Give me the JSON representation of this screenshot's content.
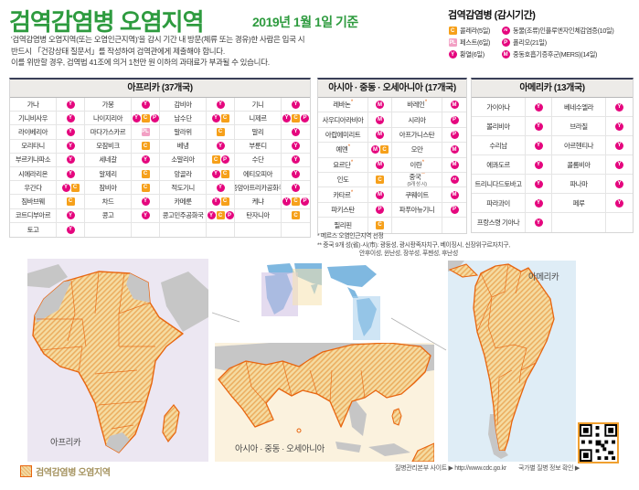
{
  "header": {
    "title": "검역감염병 오염지역",
    "date": "2019년 1월 1일 기준",
    "subtitle_lines": [
      "'검역감염병 오염지역(또는 오염인근지역)'을 감시 기간 내  방문(체류 또는 경유)한 사람은 입국 시",
      "반드시 「건강상태 질문서」를 작성하여 검역관에게 제출해야 합니다.",
      "이를 위반할 경우, 검역법 41조에 의거 1천만 원 이하의 과태료가 부과될 수 있습니다."
    ]
  },
  "legend": {
    "title": "검역감염병 (감시기간)",
    "items": [
      {
        "badge": "C",
        "label": "콜레라(5일)"
      },
      {
        "badge": "AI",
        "label": "동물(조류)인플루엔자인체감염증(10일)"
      },
      {
        "badge": "PL",
        "label": "페스트(6일)"
      },
      {
        "badge": "P",
        "label": "폴리오(21일)"
      },
      {
        "badge": "Y",
        "label": "황열(6일)"
      },
      {
        "badge": "M",
        "label": "중동호흡기증후군(MERS)(14일)"
      }
    ]
  },
  "badge_styles": {
    "Y": {
      "shape": "circle",
      "color": "#e5067e"
    },
    "M": {
      "shape": "circle",
      "color": "#e5067e"
    },
    "P": {
      "shape": "circle",
      "color": "#e5067e"
    },
    "AI": {
      "shape": "circle",
      "color": "#e5067e"
    },
    "C": {
      "shape": "square",
      "color": "#f6a01a"
    },
    "PL": {
      "shape": "square",
      "color": "#f2a0c4"
    }
  },
  "tables": {
    "africa": {
      "title": "아프리카 (37개국)",
      "rows": [
        [
          {
            "n": "가나",
            "b": [
              "Y"
            ]
          },
          {
            "n": "가봉",
            "b": [
              "Y"
            ]
          },
          {
            "n": "감비아",
            "b": [
              "Y"
            ]
          },
          {
            "n": "기니",
            "b": [
              "Y"
            ]
          }
        ],
        [
          {
            "n": "기니비사우",
            "b": [
              "Y"
            ]
          },
          {
            "n": "나이지리아",
            "b": [
              "Y",
              "C",
              "P"
            ]
          },
          {
            "n": "남수단",
            "b": [
              "Y",
              "C"
            ]
          },
          {
            "n": "니제르",
            "b": [
              "Y",
              "C",
              "P"
            ]
          }
        ],
        [
          {
            "n": "라이베리아",
            "b": [
              "Y"
            ]
          },
          {
            "n": "마다가스카르",
            "b": [
              "PL"
            ]
          },
          {
            "n": "말라위",
            "b": [
              "C"
            ]
          },
          {
            "n": "말리",
            "b": [
              "Y"
            ]
          }
        ],
        [
          {
            "n": "모리타니",
            "b": [
              "Y"
            ]
          },
          {
            "n": "모잠비크",
            "b": [
              "C"
            ]
          },
          {
            "n": "베냉",
            "b": [
              "Y"
            ]
          },
          {
            "n": "부룬디",
            "b": [
              "Y"
            ]
          }
        ],
        [
          {
            "n": "부르키나파소",
            "b": [
              "Y"
            ]
          },
          {
            "n": "세네갈",
            "b": [
              "Y"
            ]
          },
          {
            "n": "소말리아",
            "b": [
              "C",
              "P"
            ]
          },
          {
            "n": "수단",
            "b": [
              "Y"
            ]
          }
        ],
        [
          {
            "n": "시에라리온",
            "b": [
              "Y"
            ]
          },
          {
            "n": "알제리",
            "b": [
              "C"
            ]
          },
          {
            "n": "앙골라",
            "b": [
              "Y",
              "C"
            ]
          },
          {
            "n": "에티오피아",
            "b": [
              "Y"
            ]
          }
        ],
        [
          {
            "n": "우간다",
            "b": [
              "Y",
              "C"
            ]
          },
          {
            "n": "잠비아",
            "b": [
              "C"
            ]
          },
          {
            "n": "적도기니",
            "b": [
              "Y"
            ]
          },
          {
            "n": "중앙아프리카공화국",
            "b": [
              "Y"
            ]
          }
        ],
        [
          {
            "n": "짐바브웨",
            "b": [
              "C"
            ]
          },
          {
            "n": "차드",
            "b": [
              "Y"
            ]
          },
          {
            "n": "카메룬",
            "b": [
              "Y",
              "C"
            ]
          },
          {
            "n": "케냐",
            "b": [
              "Y",
              "C",
              "P"
            ]
          }
        ],
        [
          {
            "n": "코트디부아르",
            "b": [
              "Y"
            ]
          },
          {
            "n": "콩고",
            "b": [
              "Y"
            ]
          },
          {
            "n": "콩고민주공화국",
            "b": [
              "Y",
              "C",
              "P"
            ]
          },
          {
            "n": "탄자니아",
            "b": [
              "C"
            ]
          }
        ],
        [
          {
            "n": "토고",
            "b": [
              "Y"
            ]
          },
          {
            "n": "",
            "b": []
          },
          {
            "n": "",
            "b": []
          },
          {
            "n": "",
            "b": []
          }
        ]
      ]
    },
    "asia": {
      "title": "아시아 · 중동 · 오세아니아 (17개국)",
      "rows": [
        [
          {
            "n": "레바논*",
            "b": [
              "M"
            ]
          },
          {
            "n": "바레인*",
            "b": [
              "M"
            ]
          }
        ],
        [
          {
            "n": "사우디아라비아",
            "b": [
              "M"
            ]
          },
          {
            "n": "시리아",
            "b": [
              "P"
            ]
          }
        ],
        [
          {
            "n": "아랍에미리트",
            "b": [
              "M"
            ]
          },
          {
            "n": "아프가니스탄",
            "b": [
              "P"
            ]
          }
        ],
        [
          {
            "n": "예멘*",
            "b": [
              "M",
              "C"
            ]
          },
          {
            "n": "오만",
            "b": [
              "M"
            ]
          }
        ],
        [
          {
            "n": "요르단*",
            "b": [
              "M"
            ]
          },
          {
            "n": "이란*",
            "b": [
              "M"
            ]
          }
        ],
        [
          {
            "n": "인도",
            "b": [
              "C"
            ]
          },
          {
            "n": "중국**",
            "sub": "(9개 성·시)",
            "b": [
              "AI"
            ]
          }
        ],
        [
          {
            "n": "카타르*",
            "b": [
              "M"
            ]
          },
          {
            "n": "쿠웨이트",
            "b": [
              "M"
            ]
          }
        ],
        [
          {
            "n": "파키스탄",
            "b": [
              "P"
            ]
          },
          {
            "n": "파푸아뉴기니",
            "b": [
              "P"
            ]
          }
        ],
        [
          {
            "n": "필리핀",
            "b": [
              "C"
            ]
          },
          {
            "n": "",
            "b": []
          }
        ]
      ]
    },
    "america": {
      "title": "아메리카 (13개국)",
      "rows": [
        [
          {
            "n": "가이아나",
            "b": [
              "Y"
            ]
          },
          {
            "n": "베네수엘라",
            "b": [
              "Y"
            ]
          }
        ],
        [
          {
            "n": "볼리비아",
            "b": [
              "Y"
            ]
          },
          {
            "n": "브라질",
            "b": [
              "Y"
            ]
          }
        ],
        [
          {
            "n": "수리남",
            "b": [
              "Y"
            ]
          },
          {
            "n": "아르헨티나",
            "b": [
              "Y"
            ]
          }
        ],
        [
          {
            "n": "에콰도르",
            "b": [
              "Y"
            ]
          },
          {
            "n": "콜롬비아",
            "b": [
              "Y"
            ]
          }
        ],
        [
          {
            "n": "트리니다드토바고",
            "b": [
              "Y"
            ]
          },
          {
            "n": "파나마",
            "b": [
              "Y"
            ]
          }
        ],
        [
          {
            "n": "파라과이",
            "b": [
              "Y"
            ]
          },
          {
            "n": "페루",
            "b": [
              "Y"
            ]
          }
        ],
        [
          {
            "n": "프랑스령 기아나",
            "b": [
              "Y"
            ]
          },
          {
            "n": "",
            "b": []
          }
        ]
      ]
    }
  },
  "footnotes": [
    "* 메르스 오염인근지역 선정",
    "** 중국 9개 성(省)·시(市): 광둥성, 광시좡족자치구, 베이징시, 신장위구르자치구,",
    "안후이성, 윈난성, 장쑤성, 푸젠성, 후난성"
  ],
  "maps": {
    "africa_label": "아프리카",
    "asia_label": "아시아 · 중동 · 오세아니아",
    "america_label": "아메리카"
  },
  "footer": {
    "map_legend": "검역감염병 오염지역",
    "site_label": "질병관리본부 사이트 ▶ http://www.cdc.go.kr",
    "qr_label": "국가별 질병 정보 확인 ▶"
  },
  "colors": {
    "accent_green": "#2e9b3f",
    "badge_magenta": "#e5067e",
    "badge_orange": "#f6a01a",
    "badge_pink": "#f2a0c4",
    "hatch_outline": "#e8650f",
    "map_bg_africa": "#ece7f2",
    "map_bg_asia": "#fbf2de",
    "map_bg_america": "#dfedf6"
  }
}
